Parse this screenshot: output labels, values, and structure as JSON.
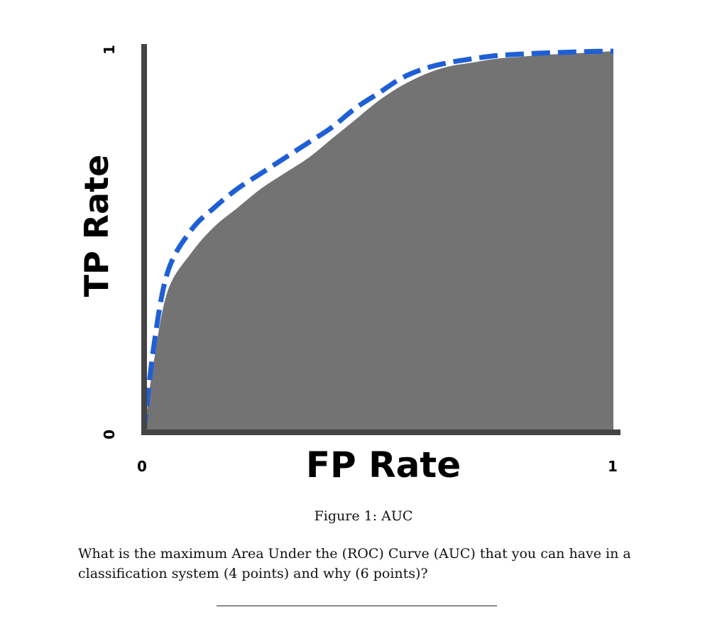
{
  "chart_data": {
    "type": "area",
    "xlabel": "FP Rate",
    "ylabel": "TP Rate",
    "xlim": [
      0,
      1
    ],
    "ylim": [
      0,
      1
    ],
    "x_ticks": [
      "0",
      "1"
    ],
    "y_ticks": [
      "0",
      "1"
    ],
    "grid": false,
    "series": [
      {
        "style": "filled-area",
        "color": "#737373",
        "x": [
          0,
          0.02,
          0.05,
          0.1,
          0.15,
          0.2,
          0.25,
          0.3,
          0.35,
          0.4,
          0.45,
          0.5,
          0.55,
          0.6,
          0.65,
          0.7,
          0.75,
          0.8,
          0.85,
          0.9,
          0.95,
          1.0
        ],
        "y": [
          0,
          0.18,
          0.37,
          0.47,
          0.54,
          0.59,
          0.64,
          0.68,
          0.72,
          0.77,
          0.82,
          0.87,
          0.91,
          0.94,
          0.96,
          0.97,
          0.98,
          0.985,
          0.99,
          0.993,
          0.996,
          1.0
        ]
      },
      {
        "style": "dashed-line",
        "color": "#1f5fd6",
        "x": [
          0,
          0.02,
          0.05,
          0.1,
          0.15,
          0.2,
          0.25,
          0.3,
          0.35,
          0.4,
          0.45,
          0.5,
          0.55,
          0.6,
          0.65,
          0.7,
          0.75,
          0.8,
          0.85,
          0.9,
          0.95,
          1.0
        ],
        "y": [
          0,
          0.22,
          0.42,
          0.53,
          0.59,
          0.64,
          0.68,
          0.72,
          0.76,
          0.8,
          0.85,
          0.89,
          0.93,
          0.955,
          0.97,
          0.98,
          0.988,
          0.992,
          0.995,
          0.997,
          0.999,
          1.0
        ]
      }
    ]
  },
  "document": {
    "caption": "Figure 1: AUC",
    "question": "What is the maximum Area Under the (ROC) Curve (AUC) that you can have in a classification system (4 points) and why (6 points)?"
  }
}
